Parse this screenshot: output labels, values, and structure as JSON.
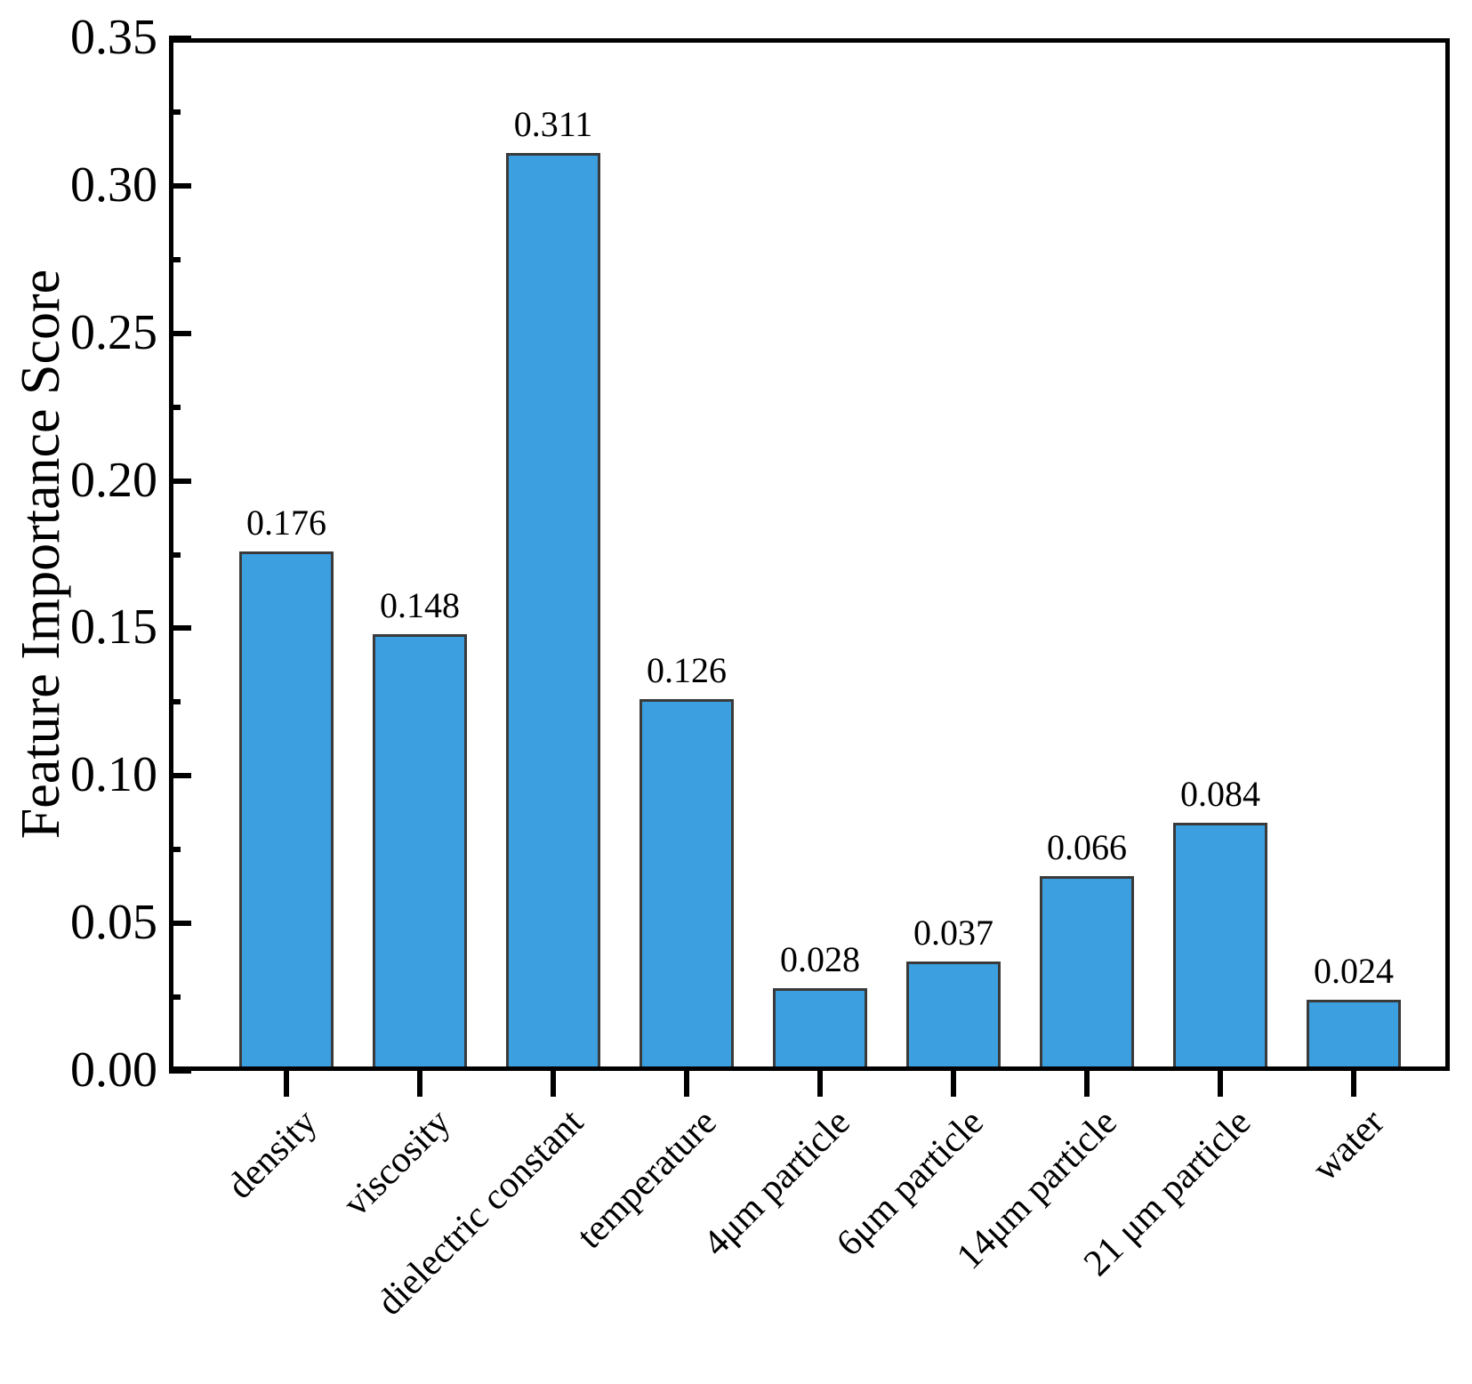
{
  "figure": {
    "background_color": "#ffffff",
    "text_color": "#000000"
  },
  "chart_data": {
    "type": "bar",
    "title": "",
    "xlabel": "",
    "ylabel": "Feature Importance Score",
    "categories": [
      "density",
      "viscosity",
      "dielectric constant",
      "temperature",
      "4μm particle",
      "6μm particle",
      "14μm particle",
      "21 μm particle",
      "water"
    ],
    "values": [
      0.176,
      0.148,
      0.311,
      0.126,
      0.028,
      0.037,
      0.066,
      0.084,
      0.024
    ],
    "bar_value_labels": [
      "0.176",
      "0.148",
      "0.311",
      "0.126",
      "0.028",
      "0.037",
      "0.066",
      "0.084",
      "0.024"
    ],
    "ylim": [
      0,
      0.35
    ],
    "y_major_tick_step": 0.05,
    "y_minor_tick_step": 0.025,
    "y_tick_labels": [
      "0.00",
      "0.05",
      "0.10",
      "0.15",
      "0.20",
      "0.25",
      "0.30",
      "0.35"
    ],
    "x_tick_label_rotation_deg": 45,
    "grid": false,
    "legend": "none",
    "bar_fill_color": "#3B9FE0",
    "bar_edge_color": "#3A3A3A",
    "axis_color": "#000000"
  }
}
